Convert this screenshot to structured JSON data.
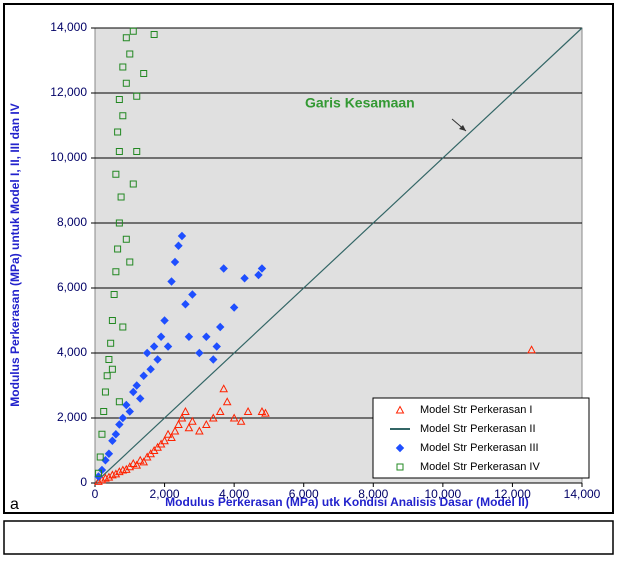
{
  "chart_data": {
    "type": "scatter",
    "x_label": "Modulus Perkerasan (MPa) utk Kondisi Analisis Dasar (Model II)",
    "y_label": "Modulus Perkerasan (MPa) untuk Model I, II, III dan IV",
    "panel_label": "a",
    "annotation": "Garis Kesamaan",
    "xlim": [
      0,
      14000
    ],
    "ylim": [
      0,
      14000
    ],
    "xticks": [
      0,
      {
        "value": 2000,
        "label": "2,000"
      },
      {
        "value": 4000,
        "label": "4,000"
      },
      {
        "value": 6000,
        "label": "6,000"
      },
      {
        "value": 8000,
        "label": "8,000"
      },
      {
        "value": 10000,
        "label": "10,000"
      },
      {
        "value": 12000,
        "label": "12,000"
      },
      {
        "value": 14000,
        "label": "14,000"
      }
    ],
    "yticks": [
      0,
      {
        "value": 2000,
        "label": "2,000"
      },
      {
        "value": 4000,
        "label": "4,000"
      },
      {
        "value": 6000,
        "label": "6,000"
      },
      {
        "value": 8000,
        "label": "8,000"
      },
      {
        "value": 10000,
        "label": "10,000"
      },
      {
        "value": 12000,
        "label": "12,000"
      },
      {
        "value": 14000,
        "label": "14,000"
      }
    ],
    "grid": true,
    "legend": "lower right",
    "series": [
      {
        "name": "Model Str Perkerasan I",
        "color": "#ff2200",
        "marker": "triangle",
        "x": [
          100,
          200,
          300,
          400,
          500,
          600,
          700,
          800,
          900,
          1000,
          1100,
          1200,
          1300,
          1400,
          1500,
          1600,
          1700,
          1800,
          1900,
          2000,
          2100,
          2200,
          2300,
          2400,
          2500,
          2600,
          2700,
          2800,
          3000,
          3200,
          3400,
          3600,
          3700,
          3800,
          4000,
          4200,
          4400,
          4800,
          4900,
          12550
        ],
        "values": [
          50,
          100,
          150,
          180,
          250,
          280,
          350,
          400,
          420,
          500,
          600,
          550,
          700,
          650,
          800,
          900,
          1000,
          1100,
          1200,
          1300,
          1500,
          1400,
          1600,
          1800,
          2000,
          2200,
          1700,
          1900,
          1600,
          1800,
          2000,
          2200,
          2900,
          2500,
          2000,
          1900,
          2200,
          2200,
          2150,
          4100
        ]
      },
      {
        "name": "Model Str Perkerasan II",
        "color": "#336666",
        "marker": "line",
        "x": [
          0,
          14000
        ],
        "values": [
          0,
          14000
        ]
      },
      {
        "name": "Model Str Perkerasan III",
        "color": "#1f4fff",
        "marker": "diamond",
        "x": [
          100,
          200,
          300,
          400,
          500,
          600,
          700,
          800,
          900,
          1000,
          1100,
          1200,
          1300,
          1400,
          1500,
          1600,
          1700,
          1800,
          1900,
          2000,
          2100,
          2200,
          2300,
          2400,
          2500,
          2600,
          2700,
          2800,
          3000,
          3200,
          3400,
          3500,
          3600,
          3700,
          4000,
          4300,
          4700,
          4800
        ],
        "values": [
          200,
          400,
          700,
          900,
          1300,
          1500,
          1800,
          2000,
          2400,
          2200,
          2800,
          3000,
          2600,
          3300,
          4000,
          3500,
          4200,
          3800,
          4500,
          5000,
          4200,
          6200,
          6800,
          7300,
          7600,
          5500,
          4500,
          5800,
          4000,
          4500,
          3800,
          4200,
          4800,
          6600,
          5400,
          6300,
          6400,
          6600
        ]
      },
      {
        "name": "Model Str Perkerasan IV",
        "color": "#228822",
        "marker": "square",
        "x": [
          100,
          150,
          200,
          250,
          300,
          350,
          400,
          450,
          500,
          550,
          600,
          650,
          700,
          750,
          600,
          700,
          650,
          800,
          700,
          900,
          800,
          1000,
          900,
          1100,
          1200,
          1400,
          1700,
          1000,
          800,
          1200,
          1100,
          900,
          500,
          700
        ],
        "values": [
          300,
          800,
          1500,
          2200,
          2800,
          3300,
          3800,
          4300,
          5000,
          5800,
          6500,
          7200,
          8000,
          8800,
          9500,
          10200,
          10800,
          11300,
          11800,
          12300,
          12800,
          13200,
          13700,
          13900,
          11900,
          12600,
          13800,
          6800,
          4800,
          10200,
          9200,
          7500,
          3500,
          2500
        ]
      }
    ]
  }
}
